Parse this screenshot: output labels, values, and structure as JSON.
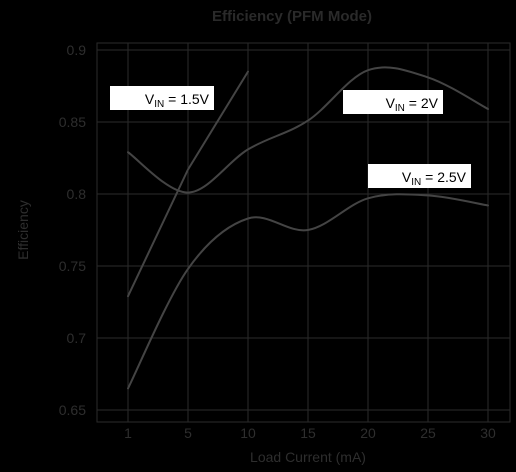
{
  "chart_data": {
    "type": "line",
    "title": "Efficiency (PFM Mode)",
    "xlabel": "Load Current (mA)",
    "ylabel": "Efficiency",
    "x_ticks": [
      "1",
      "5",
      "10",
      "15",
      "20",
      "25",
      "30"
    ],
    "y_ticks": [
      "0.9",
      "0.85",
      "0.8",
      "0.75",
      "0.7",
      "0.65"
    ],
    "ylim": [
      0.65,
      0.9
    ],
    "grid": true,
    "series": [
      {
        "name": "V_IN = 1.5V",
        "label": {
          "prefix": "V",
          "sub": "IN",
          "suffix": " = 1.5V"
        },
        "x": [
          "1",
          "5",
          "10"
        ],
        "values": [
          0.729,
          0.817,
          0.885
        ]
      },
      {
        "name": "V_IN = 2V",
        "label": {
          "prefix": "V",
          "sub": "IN",
          "suffix": " = 2V"
        },
        "x": [
          "1",
          "5",
          "10",
          "15",
          "20",
          "25",
          "30"
        ],
        "values": [
          0.829,
          0.801,
          0.831,
          0.851,
          0.886,
          0.881,
          0.859
        ]
      },
      {
        "name": "V_IN = 2.5V",
        "label": {
          "prefix": "V",
          "sub": "IN",
          "suffix": " = 2.5V"
        },
        "x": [
          "1",
          "5",
          "10",
          "15",
          "20",
          "25",
          "30"
        ],
        "values": [
          0.665,
          0.748,
          0.783,
          0.775,
          0.797,
          0.799,
          0.792
        ]
      }
    ],
    "colors": {
      "background": "#000000",
      "series_line": "#444444",
      "grid": "#2b2b2b",
      "text": "#2e2e2e",
      "label_box": "#ffffff"
    }
  }
}
